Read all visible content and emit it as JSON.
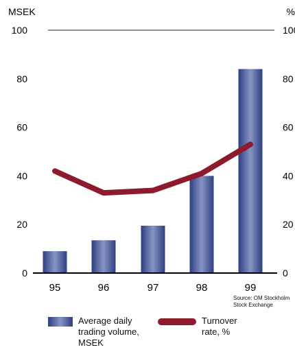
{
  "chart_data": {
    "type": "bar",
    "categories": [
      "95",
      "96",
      "97",
      "98",
      "99"
    ],
    "series": [
      {
        "name": "Average daily trading volume, MSEK",
        "type": "bar",
        "axis": "left",
        "values": [
          9,
          13.5,
          19.5,
          40,
          84
        ]
      },
      {
        "name": "Turnover rate, %",
        "type": "line",
        "axis": "right",
        "values": [
          42,
          33,
          34,
          41,
          53
        ]
      }
    ],
    "left_axis_unit": "MSEK",
    "right_axis_unit": "%",
    "ylim": [
      0,
      100
    ],
    "y_ticks": [
      0,
      20,
      40,
      60,
      80,
      100
    ],
    "grid": "top line at 100 only",
    "colors": {
      "bar": "#3b4c8f",
      "bar_light": "#8693c4",
      "line": "#8e1b2b"
    }
  },
  "source_note": "Source: OM Stockholm\nStock Exchange",
  "legend": {
    "volume_label": "Average daily\ntrading volume,\nMSEK",
    "turnover_label": "Turnover\nrate, %"
  }
}
